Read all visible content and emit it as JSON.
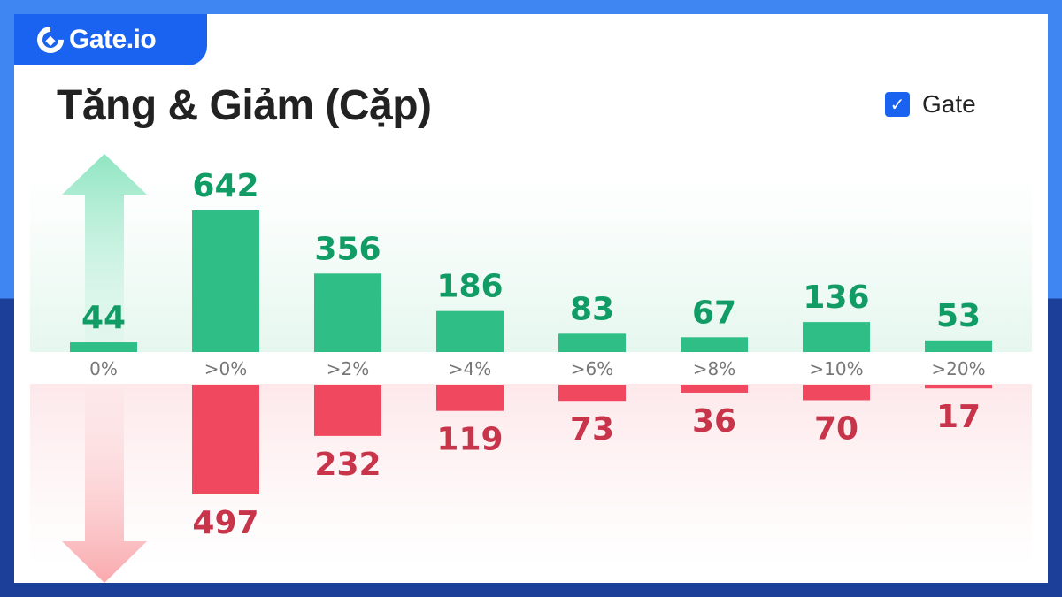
{
  "brand": {
    "logo_text": "Gate.io"
  },
  "header": {
    "title": "Tăng & Giảm (Cặp)"
  },
  "legend": {
    "label": "Gate",
    "checked": true
  },
  "colors": {
    "up": "#2fbf86",
    "up_text": "#119c66",
    "down": "#f0495f",
    "down_text": "#c8344a",
    "brand": "#1a63f0"
  },
  "chart_data": {
    "type": "bar",
    "title": "Tăng & Giảm (Cặp)",
    "categories": [
      "0%",
      ">0%",
      ">2%",
      ">4%",
      ">6%",
      ">8%",
      ">10%",
      ">20%"
    ],
    "series": [
      {
        "name": "up",
        "values": [
          44,
          642,
          356,
          186,
          83,
          67,
          136,
          53
        ]
      },
      {
        "name": "down",
        "values": [
          null,
          497,
          232,
          119,
          73,
          36,
          70,
          17
        ]
      }
    ],
    "legend": "top-right"
  }
}
